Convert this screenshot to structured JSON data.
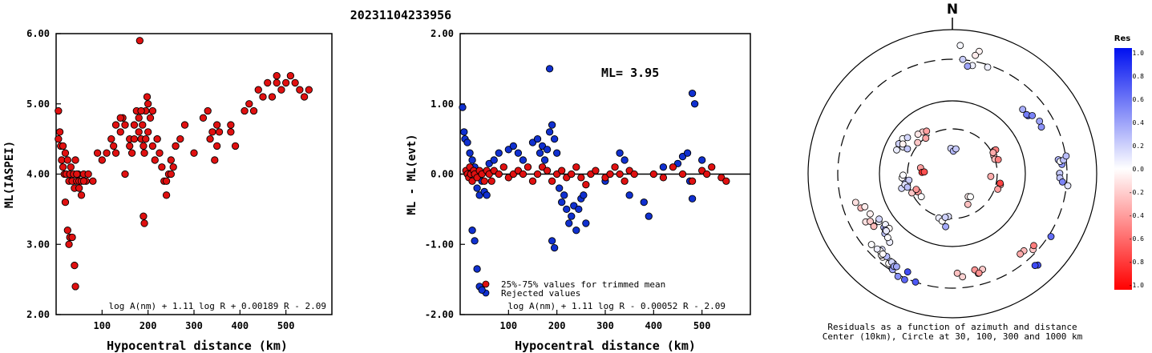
{
  "title": "20231104233956",
  "colors": {
    "red": "#e01010",
    "blue": "#1030d0",
    "axis": "#000000"
  },
  "left_panel": {
    "ylabel": "ML(IASPEI)",
    "xlabel": "Hypocentral distance (km)",
    "formula": "log A(nm) + 1.11 log R + 0.00189 R - 2.09",
    "yticks": [
      "2.00",
      "3.00",
      "4.00",
      "5.00",
      "6.00"
    ],
    "xticks": [
      "100",
      "200",
      "300",
      "400",
      "500"
    ]
  },
  "middle_panel": {
    "ylabel": "ML - ML(evt)",
    "xlabel": "Hypocentral distance (km)",
    "ml_text": "ML= 3.95",
    "legend_trimmed": "25%-75% values for trimmed mean",
    "legend_rejected": "Rejected values",
    "formula": "log A(nm) + 1.11 log R - 0.00052 R - 2.09",
    "yticks": [
      "-2.00",
      "-1.00",
      "0.00",
      "1.00",
      "2.00"
    ],
    "xticks": [
      "100",
      "200",
      "300",
      "400",
      "500"
    ]
  },
  "polar_panel": {
    "north_label": "N",
    "caption_line1": "Residuals as a function of azimuth and distance",
    "caption_line2": "Center (10km), Circle at 30, 100, 300 and 1000 km"
  },
  "colorbar": {
    "title": "Res",
    "labels": [
      "1.0",
      "0.8",
      "0.6",
      "0.4",
      "0.2",
      "0.0",
      "-0.2",
      "-0.4",
      "-0.6",
      "-0.8",
      "-1.0"
    ]
  },
  "chart_data": [
    {
      "type": "scatter",
      "title": "20231104233956",
      "xlabel": "Hypocentral distance (km)",
      "ylabel": "ML(IASPEI)",
      "xlim": [
        0,
        600
      ],
      "ylim": [
        2.0,
        6.0
      ],
      "series": [
        {
          "x": [
            5,
            8,
            10,
            12,
            15,
            18,
            20,
            22,
            25,
            28,
            30,
            32,
            35,
            38,
            40,
            42,
            45,
            48,
            50,
            55,
            60,
            65,
            70,
            80,
            90,
            100,
            110,
            120,
            125,
            130,
            140,
            145,
            150,
            160,
            165,
            170,
            175,
            180,
            182,
            185,
            188,
            190,
            192,
            195,
            198,
            200,
            205,
            210,
            215,
            220,
            225,
            230,
            235,
            240,
            245,
            250,
            255,
            260,
            270,
            280,
            320,
            330,
            335,
            340,
            345,
            350,
            355,
            380,
            390,
            410,
            420,
            430,
            440,
            450,
            460,
            470,
            480,
            490,
            500,
            510,
            520,
            530,
            540,
            550,
            190,
            192,
            195,
            30,
            35,
            40,
            42,
            20,
            25,
            28,
            160,
            170,
            180,
            200,
            210,
            220,
            240,
            250,
            260,
            5,
            15,
            45,
            50,
            55,
            60,
            300,
            350,
            380,
            480,
            130,
            140,
            150,
            185
          ],
          "y": [
            4.9,
            4.6,
            4.4,
            4.2,
            4.1,
            4.0,
            4.3,
            4.0,
            4.2,
            3.9,
            4.0,
            4.1,
            3.9,
            4.0,
            3.8,
            4.2,
            3.9,
            4.0,
            3.9,
            3.7,
            4.0,
            3.9,
            4.0,
            3.9,
            4.3,
            4.2,
            4.3,
            4.5,
            4.4,
            4.3,
            4.6,
            4.8,
            4.0,
            4.5,
            4.3,
            4.7,
            4.9,
            4.6,
            5.9,
            4.5,
            4.7,
            4.4,
            4.3,
            4.5,
            5.1,
            4.6,
            4.8,
            4.4,
            4.2,
            4.5,
            4.3,
            4.1,
            3.9,
            3.7,
            4.0,
            4.2,
            4.1,
            4.4,
            4.5,
            4.7,
            4.8,
            4.9,
            4.5,
            4.6,
            4.2,
            4.7,
            4.6,
            4.6,
            4.4,
            4.9,
            5.0,
            4.9,
            5.2,
            5.1,
            5.3,
            5.1,
            5.4,
            5.2,
            5.3,
            5.4,
            5.3,
            5.2,
            5.1,
            5.2,
            3.4,
            3.3,
            4.9,
            3.1,
            3.1,
            2.7,
            2.4,
            3.6,
            3.2,
            3.0,
            4.4,
            4.5,
            4.8,
            5.0,
            4.9,
            4.5,
            3.9,
            4.0,
            4.4,
            4.5,
            4.4,
            4.0,
            3.8,
            3.9,
            3.9,
            4.3,
            4.4,
            4.7,
            5.3,
            4.7,
            4.8,
            4.7,
            4.9
          ]
        }
      ]
    },
    {
      "type": "scatter",
      "xlabel": "Hypocentral distance (km)",
      "ylabel": "ML - ML(evt)",
      "xlim": [
        0,
        600
      ],
      "ylim": [
        -2.0,
        2.0
      ],
      "series": [
        {
          "name": "25%-75% values for trimmed mean",
          "x": [
            12,
            15,
            18,
            20,
            22,
            25,
            28,
            30,
            35,
            40,
            45,
            50,
            55,
            60,
            65,
            70,
            80,
            90,
            100,
            110,
            120,
            130,
            140,
            150,
            160,
            170,
            180,
            190,
            200,
            210,
            220,
            230,
            240,
            250,
            260,
            270,
            280,
            300,
            310,
            320,
            330,
            340,
            350,
            360,
            400,
            420,
            440,
            460,
            480,
            500,
            510,
            520,
            540,
            550
          ],
          "y": [
            0.05,
            0.0,
            -0.05,
            0.1,
            0.0,
            -0.1,
            0.05,
            0.0,
            -0.05,
            0.05,
            0.0,
            -0.1,
            0.05,
            0.0,
            -0.1,
            0.05,
            0.0,
            0.1,
            -0.05,
            0.0,
            0.05,
            0.0,
            0.1,
            -0.1,
            0.0,
            0.1,
            0.05,
            -0.1,
            0.0,
            0.05,
            -0.05,
            0.0,
            0.1,
            -0.05,
            -0.15,
            0.0,
            0.05,
            -0.05,
            0.0,
            0.1,
            0.0,
            -0.1,
            0.05,
            0.0,
            0.0,
            -0.05,
            0.1,
            0.0,
            -0.1,
            0.05,
            0.0,
            0.1,
            -0.05,
            -0.1
          ]
        },
        {
          "name": "Rejected values",
          "x": [
            5,
            8,
            10,
            15,
            20,
            25,
            30,
            35,
            40,
            45,
            50,
            55,
            60,
            70,
            80,
            100,
            110,
            120,
            130,
            150,
            160,
            165,
            170,
            175,
            180,
            185,
            190,
            195,
            200,
            205,
            210,
            215,
            220,
            225,
            230,
            235,
            240,
            245,
            250,
            255,
            260,
            300,
            330,
            340,
            350,
            380,
            390,
            420,
            450,
            460,
            470,
            475,
            480,
            500,
            25,
            30,
            35,
            40,
            45,
            185,
            190,
            195,
            480,
            485
          ],
          "y": [
            0.95,
            0.6,
            0.5,
            0.45,
            0.3,
            0.2,
            0.1,
            -0.2,
            -0.3,
            -0.1,
            -0.25,
            -0.3,
            0.15,
            0.2,
            0.3,
            0.35,
            0.4,
            0.3,
            0.2,
            0.45,
            0.5,
            0.3,
            0.4,
            0.2,
            0.35,
            0.6,
            0.7,
            0.5,
            0.3,
            -0.2,
            -0.4,
            -0.3,
            -0.5,
            -0.7,
            -0.6,
            -0.45,
            -0.8,
            -0.5,
            -0.35,
            -0.3,
            -0.7,
            -0.1,
            0.3,
            0.2,
            -0.3,
            -0.4,
            -0.6,
            0.1,
            0.15,
            0.25,
            0.3,
            -0.1,
            -0.35,
            0.2,
            -0.8,
            -0.95,
            -1.35,
            -1.6,
            -1.65,
            1.5,
            -0.95,
            -1.05,
            1.15,
            1.0
          ]
        }
      ]
    }
  ]
}
